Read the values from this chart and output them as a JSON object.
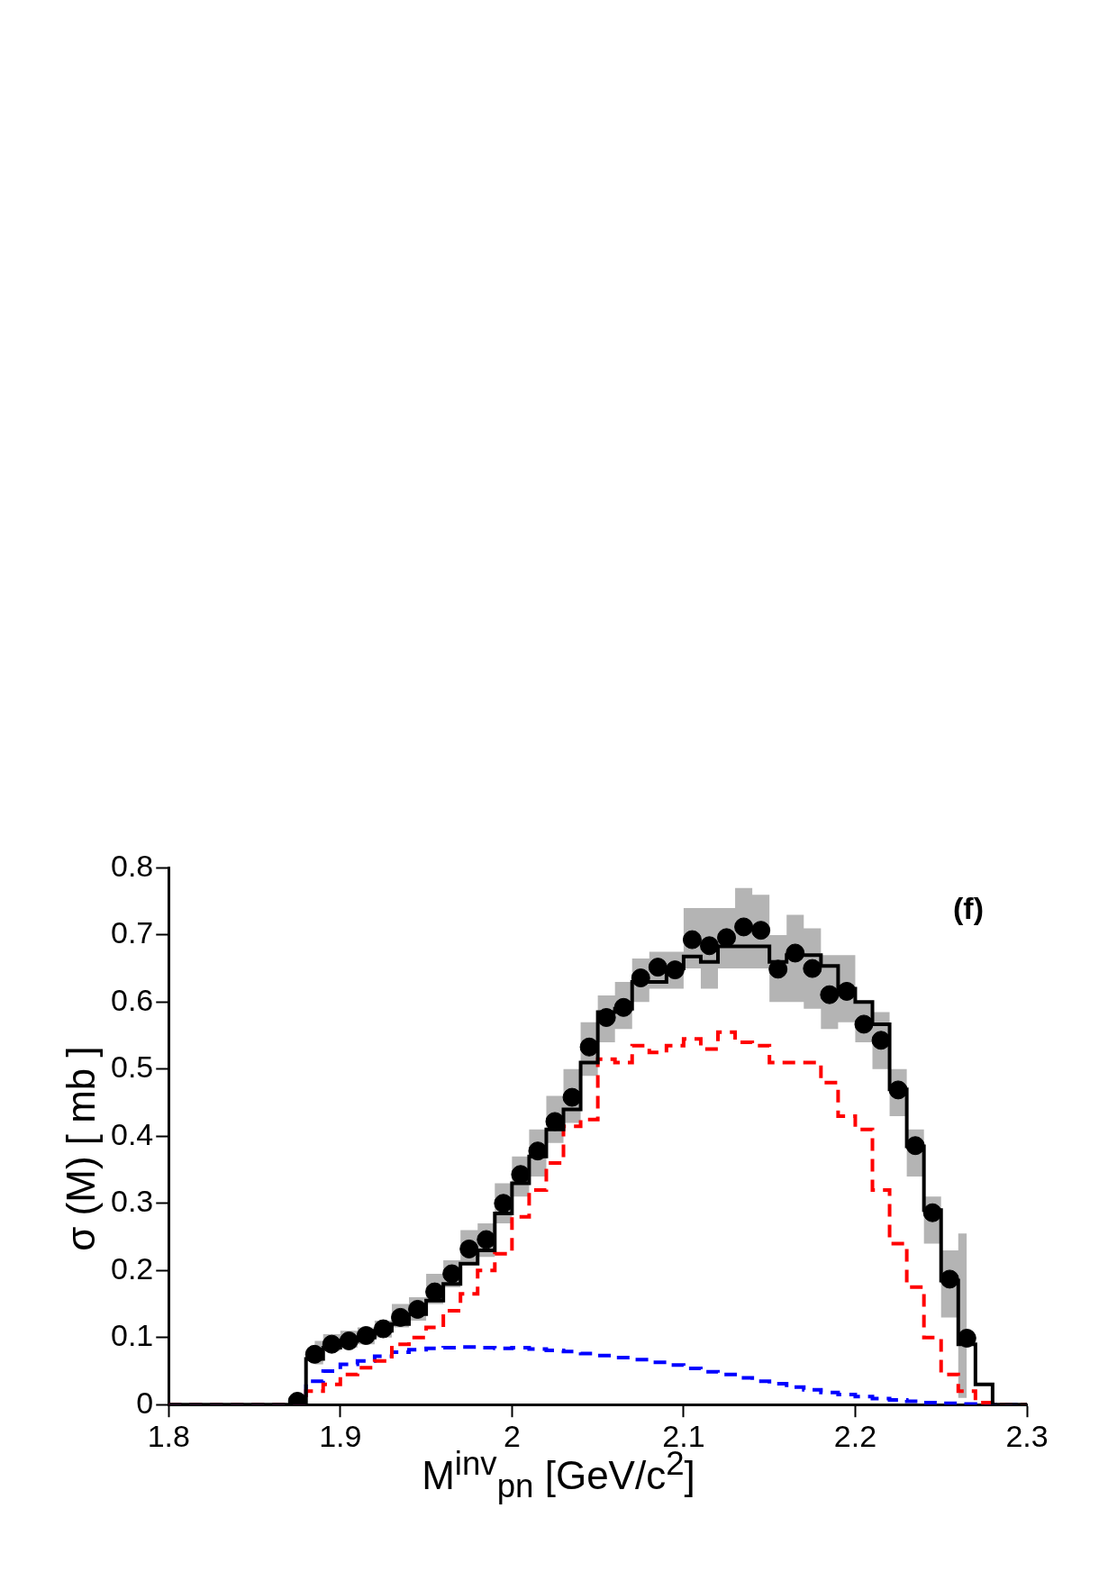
{
  "chart_data": {
    "type": "step",
    "xlabel": "M$^{inv}$$_{pn}$ [GeV/c$^{2}$]",
    "ylabel": "σ (M) [ mb ]",
    "annotations": [
      "(f)"
    ],
    "xlim": [
      1.8,
      2.3
    ],
    "xticks": [
      1.8,
      1.9,
      2,
      2.1,
      2.2,
      2.3
    ],
    "ylim": [
      0,
      0.8
    ],
    "yticks": [
      0,
      0.1,
      0.2,
      0.3,
      0.4,
      0.5,
      0.6,
      0.7,
      0.8
    ],
    "grid": false,
    "legend": false,
    "x": [
      1.8,
      1.88,
      1.89,
      1.9,
      1.91,
      1.92,
      1.93,
      1.94,
      1.95,
      1.96,
      1.97,
      1.98,
      1.99,
      2,
      2.01,
      2.02,
      2.03,
      2.04,
      2.05,
      2.06,
      2.07,
      2.08,
      2.09,
      2.1,
      2.11,
      2.12,
      2.13,
      2.14,
      2.15,
      2.16,
      2.17,
      2.18,
      2.19,
      2.2,
      2.21,
      2.22,
      2.23,
      2.24,
      2.25,
      2.26,
      2.27,
      2.28,
      2.3
    ],
    "series": [
      {
        "type": "scatter",
        "color": "#000000",
        "marker": "circle",
        "x": [
          1.875,
          1.885,
          1.895,
          1.905,
          1.915,
          1.925,
          1.935,
          1.945,
          1.955,
          1.965,
          1.975,
          1.985,
          1.995,
          2.005,
          2.015,
          2.025,
          2.035,
          2.045,
          2.055,
          2.065,
          2.075,
          2.085,
          2.095,
          2.105,
          2.115,
          2.125,
          2.135,
          2.145,
          2.155,
          2.165,
          2.175,
          2.185,
          2.195,
          2.205,
          2.215,
          2.225,
          2.235,
          2.245,
          2.255,
          2.265
        ],
        "values": [
          0.005,
          0.075,
          0.09,
          0.095,
          0.103,
          0.113,
          0.13,
          0.142,
          0.168,
          0.195,
          0.232,
          0.246,
          0.3,
          0.343,
          0.378,
          0.422,
          0.458,
          0.533,
          0.577,
          0.592,
          0.636,
          0.652,
          0.648,
          0.693,
          0.684,
          0.696,
          0.712,
          0.707,
          0.649,
          0.673,
          0.65,
          0.611,
          0.616,
          0.567,
          0.543,
          0.469,
          0.386,
          0.286,
          0.187,
          0.099
        ],
        "lower": [
          null,
          0.06,
          0.08,
          0.085,
          0.09,
          0.1,
          0.115,
          0.125,
          0.15,
          0.175,
          0.21,
          0.22,
          0.27,
          0.31,
          0.34,
          0.39,
          0.42,
          0.49,
          0.54,
          0.56,
          0.6,
          0.62,
          0.62,
          0.65,
          0.62,
          0.65,
          0.65,
          0.65,
          0.6,
          0.6,
          0.59,
          0.56,
          0.57,
          0.54,
          0.5,
          0.43,
          0.34,
          0.24,
          0.13,
          0.01
        ],
        "upper": [
          null,
          0.095,
          0.105,
          0.11,
          0.115,
          0.125,
          0.15,
          0.16,
          0.195,
          0.215,
          0.26,
          0.27,
          0.33,
          0.37,
          0.41,
          0.46,
          0.5,
          0.57,
          0.61,
          0.63,
          0.665,
          0.675,
          0.675,
          0.74,
          0.74,
          0.74,
          0.77,
          0.76,
          0.7,
          0.73,
          0.71,
          0.67,
          0.67,
          0.6,
          0.585,
          0.5,
          0.41,
          0.31,
          0.23,
          0.255
        ]
      },
      {
        "color": "#000000",
        "line_style": "solid",
        "values": [
          0,
          0.068,
          0.085,
          0.095,
          0.1,
          0.11,
          0.12,
          0.135,
          0.155,
          0.18,
          0.21,
          0.23,
          0.285,
          0.33,
          0.37,
          0.41,
          0.44,
          0.51,
          0.585,
          0.59,
          0.63,
          0.63,
          0.65,
          0.668,
          0.66,
          0.683,
          0.683,
          0.683,
          0.66,
          0.67,
          0.67,
          0.654,
          0.62,
          0.6,
          0.567,
          0.47,
          0.385,
          0.29,
          0.185,
          0.09,
          0.03,
          0,
          0
        ]
      },
      {
        "color": "#ff0000",
        "line_style": "dashed",
        "values": [
          0,
          0.02,
          0.03,
          0.045,
          0.055,
          0.065,
          0.09,
          0.1,
          0.115,
          0.14,
          0.165,
          0.2,
          0.225,
          0.28,
          0.32,
          0.36,
          0.415,
          0.425,
          0.515,
          0.51,
          0.535,
          0.525,
          0.535,
          0.545,
          0.53,
          0.555,
          0.54,
          0.535,
          0.51,
          0.51,
          0.51,
          0.48,
          0.43,
          0.41,
          0.32,
          0.24,
          0.175,
          0.1,
          0.045,
          0.02,
          0.003,
          0,
          0
        ]
      },
      {
        "color": "#0000ff",
        "line_style": "dashed",
        "values": [
          0,
          0.035,
          0.05,
          0.06,
          0.065,
          0.072,
          0.078,
          0.082,
          0.084,
          0.085,
          0.086,
          0.085,
          0.084,
          0.085,
          0.083,
          0.081,
          0.079,
          0.076,
          0.073,
          0.07,
          0.067,
          0.063,
          0.059,
          0.054,
          0.049,
          0.045,
          0.04,
          0.035,
          0.031,
          0.026,
          0.022,
          0.018,
          0.015,
          0.012,
          0.009,
          0.007,
          0.005,
          0.003,
          0.002,
          0.001,
          0,
          0,
          0
        ]
      }
    ]
  }
}
